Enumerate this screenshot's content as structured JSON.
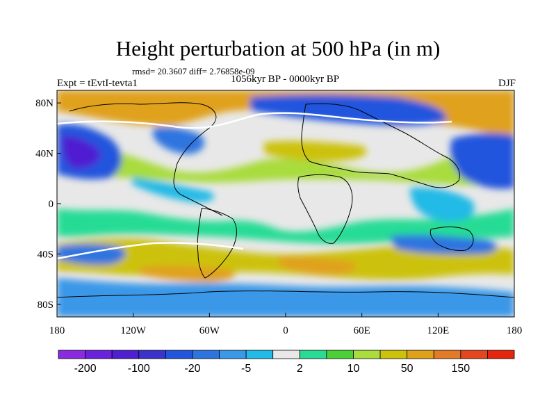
{
  "chart_data": {
    "type": "heatmap",
    "title": "Height perturbation at 500 hPa (in m)",
    "stats_text": "rmsd= 20.3607 diff= 2.76858e-09",
    "left_label": "Expt = tEvtI-tevta1",
    "center_label": "1056kyr BP - 0000kyr BP",
    "right_label": "DJF",
    "x_ticks": [
      "180",
      "120W",
      "60W",
      "0",
      "60E",
      "120E",
      "180"
    ],
    "y_ticks": [
      "80N",
      "40N",
      "0",
      "40S",
      "80S"
    ],
    "x_tick_values": [
      -180,
      -120,
      -60,
      0,
      60,
      120,
      180
    ],
    "y_tick_values": [
      80,
      40,
      0,
      -40,
      -80
    ],
    "xlim": [
      -180,
      180
    ],
    "ylim": [
      -90,
      90
    ],
    "colorbar": {
      "colors": [
        "#8a2be2",
        "#6a22dc",
        "#4f1fd1",
        "#3a33cc",
        "#2255dd",
        "#2e74e0",
        "#3a98e8",
        "#22bae6",
        "#e8e8e8",
        "#28dc95",
        "#4cd038",
        "#a9dc3c",
        "#ccc20c",
        "#e0a11a",
        "#e27a28",
        "#e4461e",
        "#e6260c"
      ],
      "labels": [
        "-200",
        "-100",
        "-20",
        "-5",
        "2",
        "10",
        "50",
        "150"
      ],
      "label_boundaries": [
        1,
        3,
        5,
        7,
        9,
        11,
        13,
        15
      ]
    }
  }
}
